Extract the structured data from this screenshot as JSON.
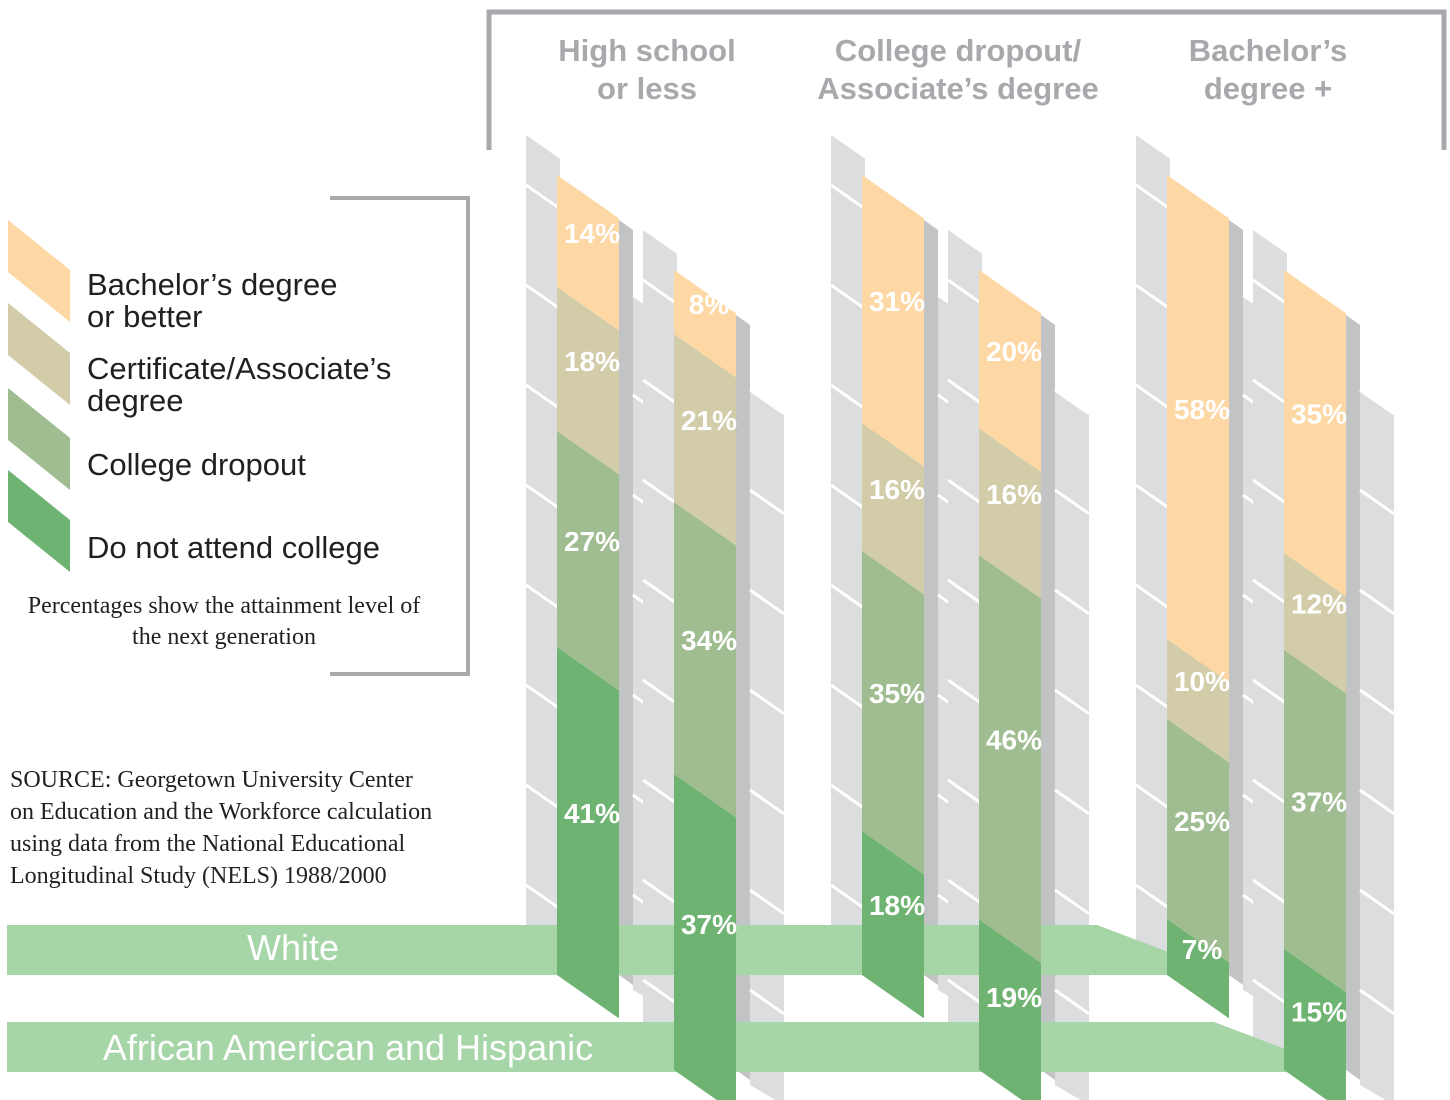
{
  "legend": {
    "items": [
      {
        "key": "bachelors",
        "lines": [
          "Bachelor’s degree",
          "or better"
        ],
        "color": "#fdd7a4"
      },
      {
        "key": "certificate",
        "lines": [
          "Certificate/Associate’s",
          "degree"
        ],
        "color": "#d2cca9"
      },
      {
        "key": "dropout",
        "lines": [
          "College dropout"
        ],
        "color": "#9fbd91"
      },
      {
        "key": "no_college",
        "lines": [
          "Do not attend college"
        ],
        "color": "#6eb372"
      }
    ],
    "note_lines": [
      "Percentages show the attainment level of",
      "the next generation"
    ]
  },
  "source_lines": [
    "SOURCE: Georgetown University Center",
    "on Education and the Workforce calculation",
    "using data from the National Educational",
    "Longitudinal Study (NELS) 1988/2000"
  ],
  "colors": {
    "band": "#a6d5a8",
    "side": "#dcdddf",
    "shadow": "#c2c3c5",
    "frame": "#a7a9ac",
    "label": "#ffffff"
  },
  "chart_data": {
    "type": "bar",
    "stacked": true,
    "value_unit": "%",
    "categories": [
      "High school or less",
      "College dropout/ Associate’s degree",
      "Bachelor’s degree +"
    ],
    "category_label_lines": [
      [
        "High school",
        "or less"
      ],
      [
        "College dropout/",
        "Associate’s degree"
      ],
      [
        "Bachelor’s",
        "degree +"
      ]
    ],
    "stack_order": [
      "Do not attend college",
      "College dropout",
      "Certificate/Associate’s degree",
      "Bachelor’s degree or better"
    ],
    "groups": [
      {
        "name": "White",
        "values": [
          {
            "Bachelor’s degree or better": 14,
            "Certificate/Associate’s degree": 18,
            "College dropout": 27,
            "Do not attend college": 41
          },
          {
            "Bachelor’s degree or better": 31,
            "Certificate/Associate’s degree": 16,
            "College dropout": 35,
            "Do not attend college": 18
          },
          {
            "Bachelor’s degree or better": 58,
            "Certificate/Associate’s degree": 10,
            "College dropout": 25,
            "Do not attend college": 7
          }
        ]
      },
      {
        "name": "African American and Hispanic",
        "values": [
          {
            "Bachelor’s degree or better": 8,
            "Certificate/Associate’s degree": 21,
            "College dropout": 34,
            "Do not attend college": 37
          },
          {
            "Bachelor’s degree or better": 20,
            "Certificate/Associate’s degree": 16,
            "College dropout": 46,
            "Do not attend college": 19
          },
          {
            "Bachelor’s degree or better": 35,
            "Certificate/Associate’s degree": 12,
            "College dropout": 37,
            "Do not attend college": 15
          }
        ]
      }
    ]
  }
}
